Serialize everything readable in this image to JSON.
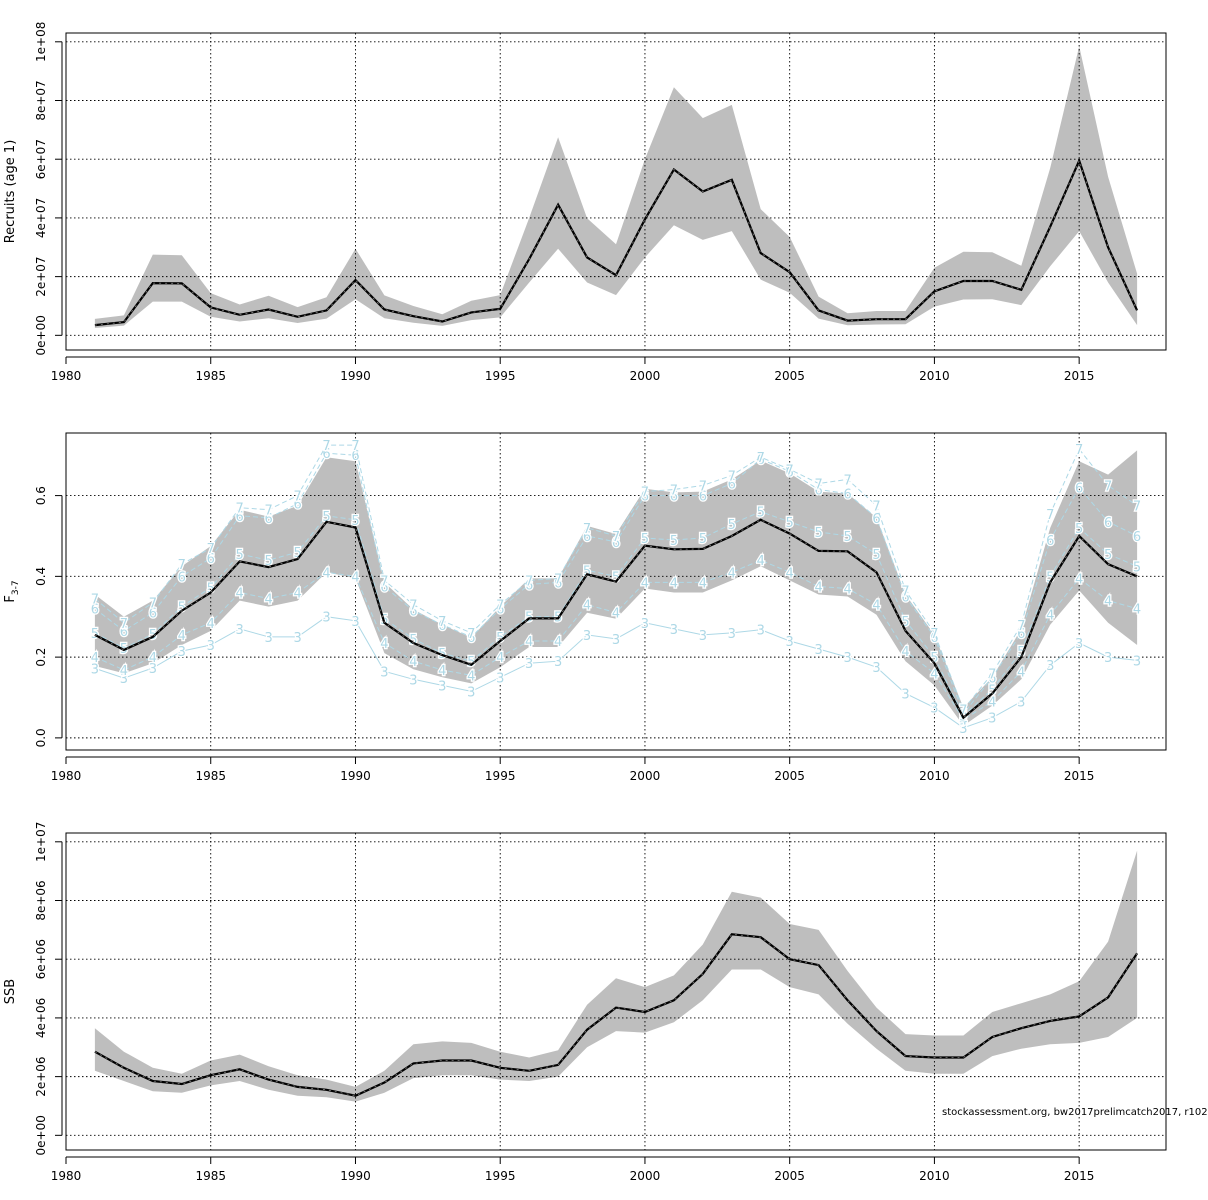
{
  "credit": "stockassessment.org, bw2017prelimcatch2017, r102",
  "colors": {
    "band": "#bebebe",
    "line": "#000000",
    "grid": "#000000",
    "label": "#add8e6"
  },
  "chart_data": [
    {
      "type": "area",
      "ylabel": "Recruits (age 1)",
      "xlim": [
        1980,
        2018
      ],
      "ylim": [
        -5000000,
        103000000
      ],
      "xticks": [
        1980,
        1985,
        1990,
        1995,
        2000,
        2005,
        2010,
        2015
      ],
      "yticks": [
        0,
        20000000,
        40000000,
        60000000,
        80000000,
        100000000
      ],
      "ytick_labels": [
        "0e+00",
        "2e+07",
        "4e+07",
        "6e+07",
        "8e+07",
        "1e+08"
      ],
      "grid": true,
      "x": [
        1981,
        1982,
        1983,
        1984,
        1985,
        1986,
        1987,
        1988,
        1989,
        1990,
        1991,
        1992,
        1993,
        1994,
        1995,
        1996,
        1997,
        1998,
        1999,
        2000,
        2001,
        2002,
        2003,
        2004,
        2005,
        2006,
        2007,
        2008,
        2009,
        2010,
        2011,
        2012,
        2013,
        2014,
        2015,
        2016,
        2017
      ],
      "estimate": [
        3500000,
        4500000,
        17800000,
        17700000,
        9500000,
        7000000,
        8800000,
        6300000,
        8500000,
        18800000,
        8800000,
        6500000,
        4700000,
        7800000,
        9000000,
        26000000,
        44500000,
        26500000,
        20500000,
        39500000,
        56500000,
        49000000,
        53000000,
        28000000,
        21500000,
        8500000,
        5000000,
        5500000,
        5500000,
        15000000,
        18500000,
        18500000,
        15500000,
        37000000,
        59500000,
        30000000,
        8500000
      ],
      "lower": [
        2500000,
        3300000,
        11500000,
        11500000,
        6300000,
        4700000,
        5800000,
        4200000,
        5700000,
        12300000,
        5800000,
        4300000,
        3200000,
        5200000,
        6100000,
        18000000,
        29500000,
        18000000,
        13700000,
        26500000,
        37500000,
        32500000,
        35500000,
        19000000,
        14500000,
        5700000,
        3400000,
        3700000,
        3800000,
        9800000,
        12200000,
        12300000,
        10300000,
        23500000,
        35500000,
        18000000,
        3500000
      ],
      "upper": [
        5600000,
        6800000,
        27500000,
        27300000,
        14400000,
        10500000,
        13500000,
        9600000,
        13000000,
        29500000,
        13600000,
        10000000,
        7200000,
        11800000,
        13700000,
        40000000,
        67500000,
        39900000,
        31000000,
        60000000,
        84500000,
        74000000,
        78500000,
        43000000,
        33500000,
        13200000,
        7500000,
        8300000,
        8300000,
        23000000,
        28500000,
        28300000,
        23700000,
        57000000,
        98500000,
        54000000,
        21000000
      ]
    },
    {
      "type": "area",
      "ylabel": "F",
      "ylabel_sub": "3-7",
      "xlim": [
        1980,
        2018
      ],
      "ylim": [
        -0.03,
        0.755
      ],
      "xticks": [
        1980,
        1985,
        1990,
        1995,
        2000,
        2005,
        2010,
        2015
      ],
      "yticks": [
        0.0,
        0.2,
        0.4,
        0.6
      ],
      "ytick_labels": [
        "0.0",
        "0.2",
        "0.4",
        "0.6"
      ],
      "grid": true,
      "x": [
        1981,
        1982,
        1983,
        1984,
        1985,
        1986,
        1987,
        1988,
        1989,
        1990,
        1991,
        1992,
        1993,
        1994,
        1995,
        1996,
        1997,
        1998,
        1999,
        2000,
        2001,
        2002,
        2003,
        2004,
        2005,
        2006,
        2007,
        2008,
        2009,
        2010,
        2011,
        2012,
        2013,
        2014,
        2015,
        2016,
        2017
      ],
      "estimate": [
        0.255,
        0.218,
        0.25,
        0.315,
        0.36,
        0.437,
        0.423,
        0.443,
        0.535,
        0.521,
        0.285,
        0.235,
        0.205,
        0.181,
        0.24,
        0.296,
        0.296,
        0.405,
        0.387,
        0.476,
        0.467,
        0.468,
        0.5,
        0.54,
        0.506,
        0.463,
        0.462,
        0.41,
        0.265,
        0.185,
        0.05,
        0.11,
        0.2,
        0.385,
        0.5,
        0.43,
        0.4
      ],
      "lower": [
        0.178,
        0.16,
        0.185,
        0.23,
        0.265,
        0.34,
        0.325,
        0.34,
        0.41,
        0.395,
        0.21,
        0.17,
        0.15,
        0.135,
        0.175,
        0.225,
        0.225,
        0.31,
        0.295,
        0.37,
        0.36,
        0.36,
        0.39,
        0.425,
        0.39,
        0.355,
        0.35,
        0.305,
        0.19,
        0.13,
        0.03,
        0.08,
        0.145,
        0.28,
        0.365,
        0.285,
        0.23
      ],
      "upper": [
        0.355,
        0.3,
        0.34,
        0.425,
        0.475,
        0.565,
        0.548,
        0.575,
        0.695,
        0.685,
        0.385,
        0.318,
        0.28,
        0.248,
        0.325,
        0.395,
        0.395,
        0.525,
        0.505,
        0.617,
        0.608,
        0.61,
        0.64,
        0.687,
        0.655,
        0.61,
        0.605,
        0.545,
        0.355,
        0.255,
        0.075,
        0.15,
        0.27,
        0.52,
        0.685,
        0.652,
        0.712
      ],
      "age_labels": [
        {
          "age": "3",
          "values": [
            0.172,
            0.148,
            0.173,
            0.215,
            0.23,
            0.27,
            0.25,
            0.25,
            0.3,
            0.29,
            0.165,
            0.145,
            0.13,
            0.115,
            0.15,
            0.185,
            0.19,
            0.255,
            0.245,
            0.285,
            0.27,
            0.255,
            0.26,
            0.268,
            0.24,
            0.22,
            0.2,
            0.175,
            0.11,
            0.075,
            0.025,
            0.05,
            0.09,
            0.18,
            0.235,
            0.2,
            0.192
          ]
        },
        {
          "age": "4",
          "values": [
            0.2,
            0.168,
            0.2,
            0.255,
            0.285,
            0.36,
            0.345,
            0.36,
            0.41,
            0.4,
            0.235,
            0.19,
            0.168,
            0.155,
            0.2,
            0.24,
            0.24,
            0.33,
            0.31,
            0.385,
            0.385,
            0.385,
            0.41,
            0.44,
            0.41,
            0.375,
            0.37,
            0.33,
            0.215,
            0.16,
            0.045,
            0.09,
            0.165,
            0.305,
            0.395,
            0.34,
            0.32
          ]
        },
        {
          "age": "5",
          "values": [
            0.26,
            0.222,
            0.257,
            0.325,
            0.372,
            0.455,
            0.44,
            0.46,
            0.55,
            0.54,
            0.295,
            0.245,
            0.21,
            0.19,
            0.25,
            0.3,
            0.3,
            0.415,
            0.4,
            0.495,
            0.49,
            0.495,
            0.53,
            0.56,
            0.535,
            0.51,
            0.5,
            0.455,
            0.29,
            0.2,
            0.055,
            0.12,
            0.215,
            0.4,
            0.52,
            0.455,
            0.425
          ]
        },
        {
          "age": "6",
          "values": [
            0.32,
            0.265,
            0.31,
            0.4,
            0.445,
            0.55,
            0.545,
            0.58,
            0.705,
            0.7,
            0.375,
            0.315,
            0.28,
            0.25,
            0.32,
            0.38,
            0.385,
            0.5,
            0.485,
            0.6,
            0.6,
            0.6,
            0.63,
            0.69,
            0.66,
            0.615,
            0.605,
            0.545,
            0.35,
            0.25,
            0.06,
            0.15,
            0.26,
            0.49,
            0.62,
            0.535,
            0.5
          ]
        },
        {
          "age": "7",
          "values": [
            0.345,
            0.285,
            0.335,
            0.43,
            0.47,
            0.57,
            0.565,
            0.6,
            0.725,
            0.725,
            0.39,
            0.33,
            0.29,
            0.26,
            0.33,
            0.39,
            0.395,
            0.52,
            0.5,
            0.61,
            0.615,
            0.625,
            0.65,
            0.695,
            0.665,
            0.63,
            0.64,
            0.575,
            0.365,
            0.26,
            0.07,
            0.16,
            0.28,
            0.555,
            0.715,
            0.625,
            0.575
          ]
        }
      ]
    },
    {
      "type": "area",
      "ylabel": "SSB",
      "xlim": [
        1980,
        2018
      ],
      "ylim": [
        -500000,
        10300000
      ],
      "xticks": [
        1980,
        1985,
        1990,
        1995,
        2000,
        2005,
        2010,
        2015
      ],
      "yticks": [
        0,
        2000000,
        4000000,
        6000000,
        8000000,
        10000000
      ],
      "ytick_labels": [
        "0e+00",
        "2e+06",
        "4e+06",
        "6e+06",
        "8e+06",
        "1e+07"
      ],
      "grid": true,
      "x": [
        1981,
        1982,
        1983,
        1984,
        1985,
        1986,
        1987,
        1988,
        1989,
        1990,
        1991,
        1992,
        1993,
        1994,
        1995,
        1996,
        1997,
        1998,
        1999,
        2000,
        2001,
        2002,
        2003,
        2004,
        2005,
        2006,
        2007,
        2008,
        2009,
        2010,
        2011,
        2012,
        2013,
        2014,
        2015,
        2016,
        2017
      ],
      "estimate": [
        2850000,
        2300000,
        1850000,
        1750000,
        2050000,
        2250000,
        1900000,
        1650000,
        1550000,
        1350000,
        1800000,
        2450000,
        2550000,
        2550000,
        2300000,
        2200000,
        2400000,
        3600000,
        4350000,
        4200000,
        4600000,
        5500000,
        6850000,
        6750000,
        6000000,
        5800000,
        4600000,
        3550000,
        2700000,
        2650000,
        2650000,
        3350000,
        3650000,
        3900000,
        4050000,
        4700000,
        6200000
      ],
      "lower": [
        2200000,
        1850000,
        1500000,
        1450000,
        1700000,
        1850000,
        1550000,
        1350000,
        1300000,
        1150000,
        1450000,
        1950000,
        2050000,
        2050000,
        1900000,
        1850000,
        2000000,
        3000000,
        3550000,
        3500000,
        3850000,
        4600000,
        5650000,
        5650000,
        5050000,
        4800000,
        3800000,
        2950000,
        2200000,
        2100000,
        2100000,
        2700000,
        2950000,
        3100000,
        3150000,
        3350000,
        4000000
      ],
      "upper": [
        3650000,
        2850000,
        2300000,
        2100000,
        2550000,
        2750000,
        2350000,
        2050000,
        1900000,
        1650000,
        2200000,
        3100000,
        3200000,
        3150000,
        2850000,
        2650000,
        2900000,
        4450000,
        5350000,
        5050000,
        5450000,
        6500000,
        8300000,
        8100000,
        7200000,
        7000000,
        5600000,
        4350000,
        3450000,
        3400000,
        3400000,
        4200000,
        4500000,
        4800000,
        5250000,
        6600000,
        9700000
      ]
    }
  ]
}
